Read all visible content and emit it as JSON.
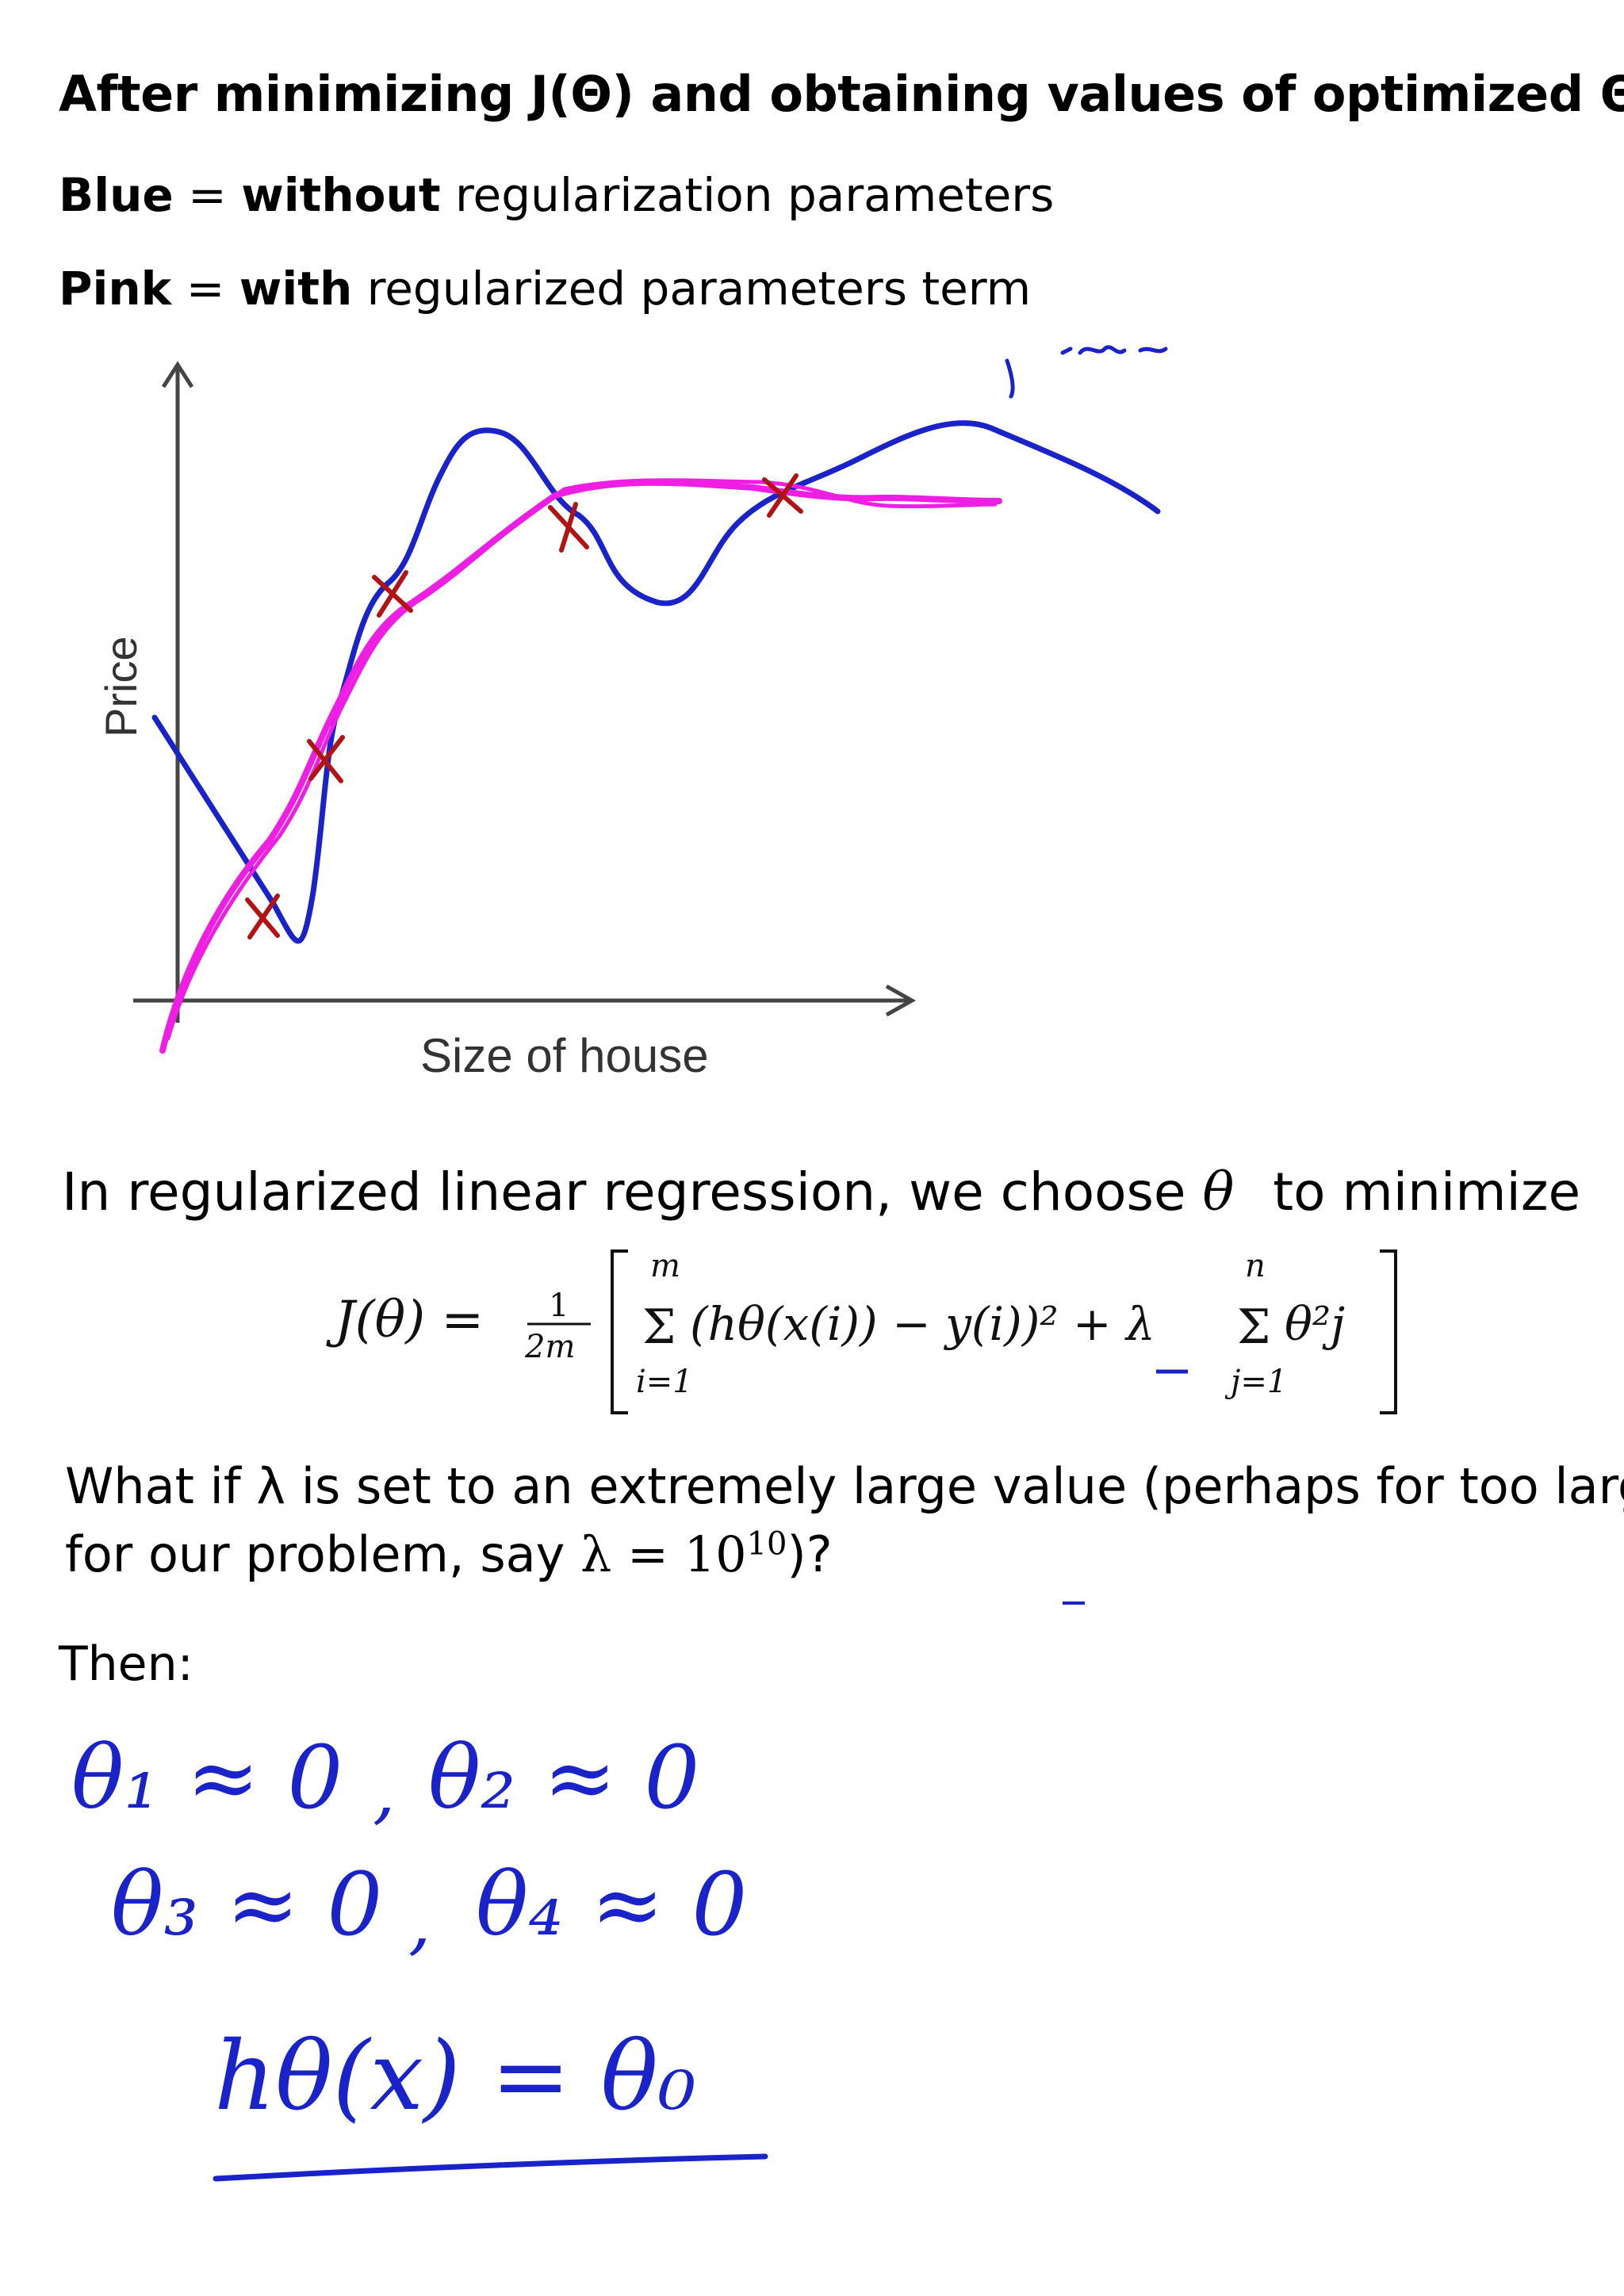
{
  "heading": "After minimizing J(Θ) and obtaining values of optimized Θs:",
  "legend": {
    "blue_key": "Blue",
    "blue_eq": " = ",
    "blue_bold": "without",
    "blue_rest": " regularization parameters",
    "pink_key": "Pink",
    "pink_eq": " = ",
    "pink_bold": "with",
    "pink_rest": " regularized parameters term"
  },
  "figure": {
    "ylabel": "Price",
    "xlabel": "Size of house",
    "colors": {
      "blue": "#1a23c8",
      "pink": "#ee1ee3",
      "cross": "#b01414",
      "axis": "#444444"
    }
  },
  "question": {
    "line1_a": "In regularized linear regression, we choose ",
    "theta": "θ",
    "line1_b": " to minimize",
    "formula": {
      "lhs": "J(θ) =",
      "frac_num": "1",
      "frac_den": "2m",
      "sum1_top": "m",
      "sum1_bottom": "i=1",
      "body": "(hθ(x(i)) − y(i))² + λ",
      "sum2_top": "n",
      "sum2_bottom": "j=1",
      "tail": "θ²j"
    },
    "line2": "What if λ is set to an extremely large value (perhaps for too large",
    "line3_a": "for our problem, say ",
    "line3_math": "λ = 10",
    "line3_exp": "10",
    "line3_b": ")?"
  },
  "then_label": "Then:",
  "handwriting": {
    "row1_a": "θ₁ ≈ 0",
    "row1_b": "θ₂ ≈ 0",
    "row2_a": "θ₃ ≈ 0",
    "row2_b": "θ₄ ≈ 0",
    "result": "hθ(x) = θ₀"
  }
}
